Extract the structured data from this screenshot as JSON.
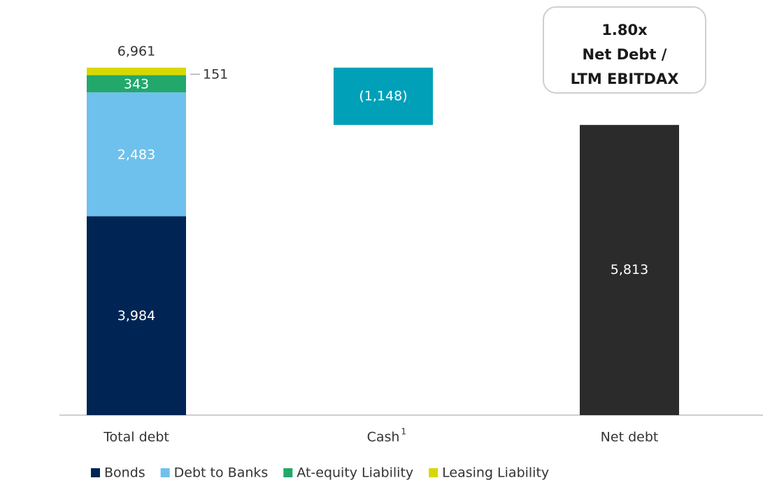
{
  "chart_data": {
    "type": "waterfall",
    "categories": [
      "Total debt",
      "Cash",
      "Net debt"
    ],
    "category_footnotes": [
      null,
      "1",
      null
    ],
    "ylim": [
      0,
      7000
    ],
    "series": [
      {
        "name": "Bonds",
        "color": "#002554",
        "values": [
          3984,
          null,
          null
        ],
        "value_labels": [
          "3,984",
          null,
          null
        ]
      },
      {
        "name": "Debt to Banks",
        "color": "#6ec1ec",
        "values": [
          2483,
          null,
          null
        ],
        "value_labels": [
          "2,483",
          null,
          null
        ]
      },
      {
        "name": "At-equity Liability",
        "color": "#22a86b",
        "values": [
          343,
          null,
          null
        ],
        "value_labels": [
          "343",
          null,
          null
        ]
      },
      {
        "name": "Leasing Liability",
        "color": "#d8d800",
        "values": [
          151,
          null,
          null
        ],
        "value_labels": [
          "151",
          null,
          null
        ],
        "label_position": "right"
      }
    ],
    "total": 6961,
    "total_label": "6,961",
    "cash": {
      "value": -1148,
      "value_label": "(1,148)",
      "color": "#00a0b8"
    },
    "net_debt": {
      "value": 5813,
      "value_label": "5,813",
      "color": "#2b2b2b"
    },
    "annotation": {
      "lines": [
        "1.80x",
        "Net Debt /",
        "LTM EBITDAX"
      ]
    }
  }
}
